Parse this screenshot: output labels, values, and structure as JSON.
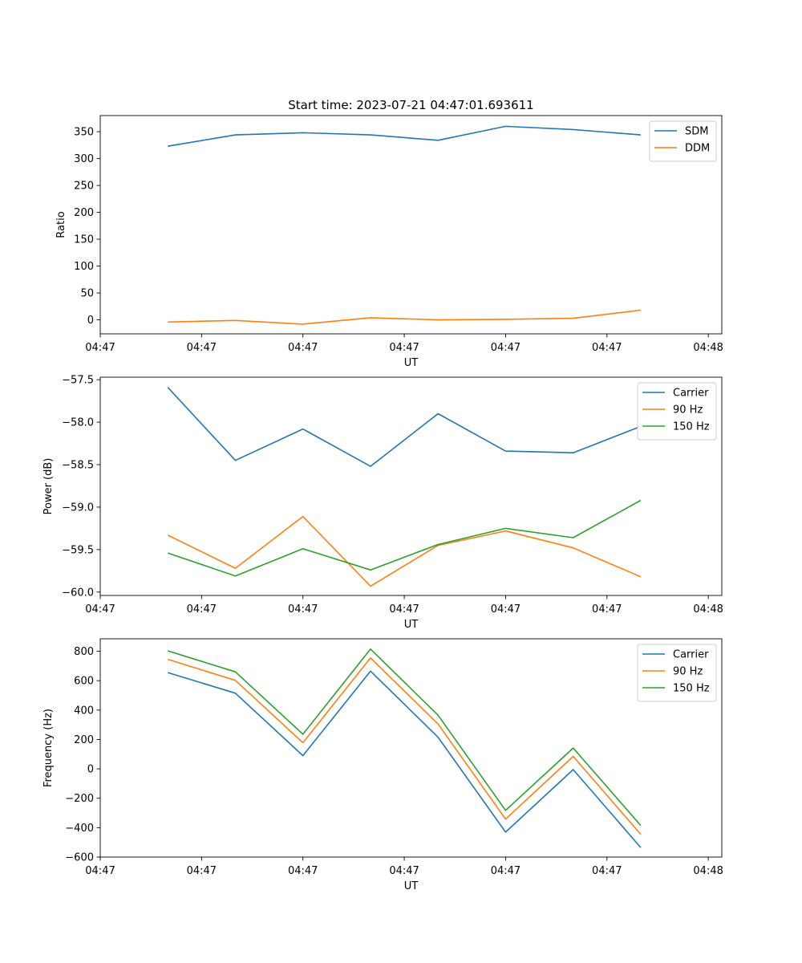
{
  "figure": {
    "title": "Start time: 2023-07-21 04:47:01.693611"
  },
  "colors": {
    "blue": "#1f77b4",
    "orange": "#ff7f0e",
    "green": "#2ca02c"
  },
  "chart_data": [
    {
      "type": "line",
      "title": "Start time: 2023-07-21 04:47:01.693611",
      "xlabel": "UT",
      "ylabel": "Ratio",
      "x": [
        1,
        2,
        3,
        4,
        5,
        6,
        7,
        8
      ],
      "xlim": [
        0.0,
        9.2
      ],
      "xticks": [
        0.0,
        1.5,
        3.0,
        4.5,
        6.0,
        7.5,
        9.0
      ],
      "xtick_labels": [
        "04:47",
        "04:47",
        "04:47",
        "04:47",
        "04:47",
        "04:47",
        "04:48"
      ],
      "ylim": [
        -26,
        380
      ],
      "yticks": [
        0,
        50,
        100,
        150,
        200,
        250,
        300,
        350
      ],
      "ytick_labels": [
        "0",
        "50",
        "100",
        "150",
        "200",
        "250",
        "300",
        "350"
      ],
      "legend": "top-right",
      "series": [
        {
          "name": "SDM",
          "color": "#1f77b4",
          "values": [
            323,
            344,
            348,
            344,
            334,
            360,
            354,
            344
          ]
        },
        {
          "name": "DDM",
          "color": "#ff7f0e",
          "values": [
            -4,
            -1,
            -8,
            4,
            0,
            1,
            3,
            18
          ]
        }
      ]
    },
    {
      "type": "line",
      "xlabel": "UT",
      "ylabel": "Power (dB)",
      "x": [
        1,
        2,
        3,
        4,
        5,
        6,
        7,
        8
      ],
      "xlim": [
        0.0,
        9.2
      ],
      "xticks": [
        0.0,
        1.5,
        3.0,
        4.5,
        6.0,
        7.5,
        9.0
      ],
      "xtick_labels": [
        "04:47",
        "04:47",
        "04:47",
        "04:47",
        "04:47",
        "04:47",
        "04:48"
      ],
      "ylim": [
        -60.04,
        -57.47
      ],
      "yticks": [
        -60.0,
        -59.5,
        -59.0,
        -58.5,
        -58.0,
        -57.5
      ],
      "ytick_labels": [
        "−60.0",
        "−59.5",
        "−59.0",
        "−58.5",
        "−58.0",
        "−57.5"
      ],
      "legend": "top-right",
      "series": [
        {
          "name": "Carrier",
          "color": "#1f77b4",
          "values": [
            -57.59,
            -58.45,
            -58.08,
            -58.52,
            -57.9,
            -58.34,
            -58.36,
            -58.05
          ]
        },
        {
          "name": "90 Hz",
          "color": "#ff7f0e",
          "values": [
            -59.33,
            -59.72,
            -59.11,
            -59.93,
            -59.45,
            -59.28,
            -59.48,
            -59.82
          ]
        },
        {
          "name": "150 Hz",
          "color": "#2ca02c",
          "values": [
            -59.54,
            -59.81,
            -59.49,
            -59.74,
            -59.44,
            -59.25,
            -59.36,
            -58.92
          ]
        }
      ]
    },
    {
      "type": "line",
      "xlabel": "UT",
      "ylabel": "Frequency (Hz)",
      "x": [
        1,
        2,
        3,
        4,
        5,
        6,
        7,
        8
      ],
      "xlim": [
        0.0,
        9.2
      ],
      "xticks": [
        0.0,
        1.5,
        3.0,
        4.5,
        6.0,
        7.5,
        9.0
      ],
      "xtick_labels": [
        "04:47",
        "04:47",
        "04:47",
        "04:47",
        "04:47",
        "04:47",
        "04:48"
      ],
      "ylim": [
        -600,
        885
      ],
      "yticks": [
        -600,
        -400,
        -200,
        0,
        200,
        400,
        600,
        800
      ],
      "ytick_labels": [
        "−600",
        "−400",
        "−200",
        "0",
        "200",
        "400",
        "600",
        "800"
      ],
      "legend": "top-right",
      "series": [
        {
          "name": "Carrier",
          "color": "#1f77b4",
          "values": [
            655,
            515,
            90,
            665,
            215,
            -430,
            -5,
            -535
          ]
        },
        {
          "name": "90 Hz",
          "color": "#ff7f0e",
          "values": [
            745,
            602,
            178,
            755,
            305,
            -342,
            85,
            -445
          ]
        },
        {
          "name": "150 Hz",
          "color": "#2ca02c",
          "values": [
            803,
            660,
            236,
            815,
            365,
            -282,
            142,
            -385
          ]
        }
      ]
    }
  ]
}
